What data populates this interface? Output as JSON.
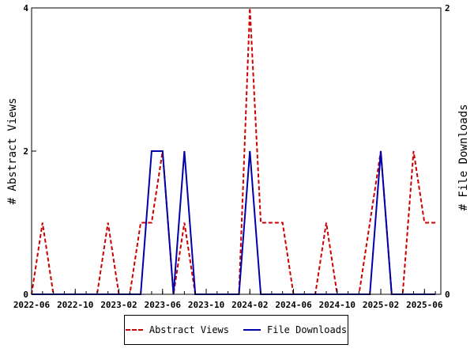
{
  "chart_data": {
    "type": "line",
    "x_tick_labels": [
      "2022-06",
      "2022-10",
      "2023-02",
      "2023-06",
      "2023-10",
      "2024-02",
      "2024-06",
      "2024-10",
      "2025-02",
      "2025-06"
    ],
    "x_tick_months": [
      0,
      4,
      8,
      12,
      16,
      20,
      24,
      28,
      32,
      36
    ],
    "x_range_months": [
      0,
      37.5
    ],
    "y_left": {
      "label": "# Abstract Views",
      "ticks": [
        0,
        2,
        4
      ],
      "range": [
        0,
        4
      ]
    },
    "y_right": {
      "label": "# File Downloads",
      "ticks": [
        0,
        2
      ],
      "range": [
        0,
        2
      ]
    },
    "series": [
      {
        "name": "Abstract Views",
        "axis": "left",
        "color": "#cc0000",
        "style": "dashed",
        "points": [
          [
            0,
            0
          ],
          [
            1,
            1
          ],
          [
            2,
            0
          ],
          [
            3,
            0
          ],
          [
            4,
            0
          ],
          [
            5,
            0
          ],
          [
            6,
            0
          ],
          [
            7,
            1
          ],
          [
            8,
            0
          ],
          [
            9,
            0
          ],
          [
            10,
            1
          ],
          [
            11,
            1
          ],
          [
            12,
            2
          ],
          [
            13,
            0
          ],
          [
            14,
            1
          ],
          [
            15,
            0
          ],
          [
            16,
            0
          ],
          [
            17,
            0
          ],
          [
            18,
            0
          ],
          [
            19,
            0
          ],
          [
            20,
            4
          ],
          [
            21,
            1
          ],
          [
            22,
            1
          ],
          [
            23,
            1
          ],
          [
            24,
            0
          ],
          [
            25,
            0
          ],
          [
            26,
            0
          ],
          [
            27,
            1
          ],
          [
            28,
            0
          ],
          [
            29,
            0
          ],
          [
            30,
            0
          ],
          [
            31,
            1
          ],
          [
            32,
            2
          ],
          [
            33,
            0
          ],
          [
            34,
            0
          ],
          [
            35,
            2
          ],
          [
            36,
            1
          ],
          [
            37,
            1
          ]
        ]
      },
      {
        "name": "File Downloads",
        "axis": "right",
        "color": "#0000aa",
        "style": "solid",
        "points": [
          [
            0,
            0
          ],
          [
            10,
            0
          ],
          [
            11,
            1
          ],
          [
            12,
            1
          ],
          [
            13,
            0
          ],
          [
            14,
            1
          ],
          [
            15,
            0
          ],
          [
            16,
            0
          ],
          [
            17,
            0
          ],
          [
            18,
            0
          ],
          [
            19,
            0
          ],
          [
            20,
            1
          ],
          [
            21,
            0
          ],
          [
            22,
            0
          ],
          [
            23,
            0
          ],
          [
            24,
            0
          ],
          [
            25,
            0
          ],
          [
            26,
            0
          ],
          [
            27,
            0
          ],
          [
            28,
            0
          ],
          [
            29,
            0
          ],
          [
            30,
            0
          ],
          [
            31,
            0
          ],
          [
            32,
            1
          ],
          [
            33,
            0
          ],
          [
            34,
            0
          ],
          [
            35,
            0
          ],
          [
            36,
            0
          ],
          [
            37,
            0
          ]
        ]
      }
    ],
    "legend": {
      "placement": "bottom"
    }
  }
}
